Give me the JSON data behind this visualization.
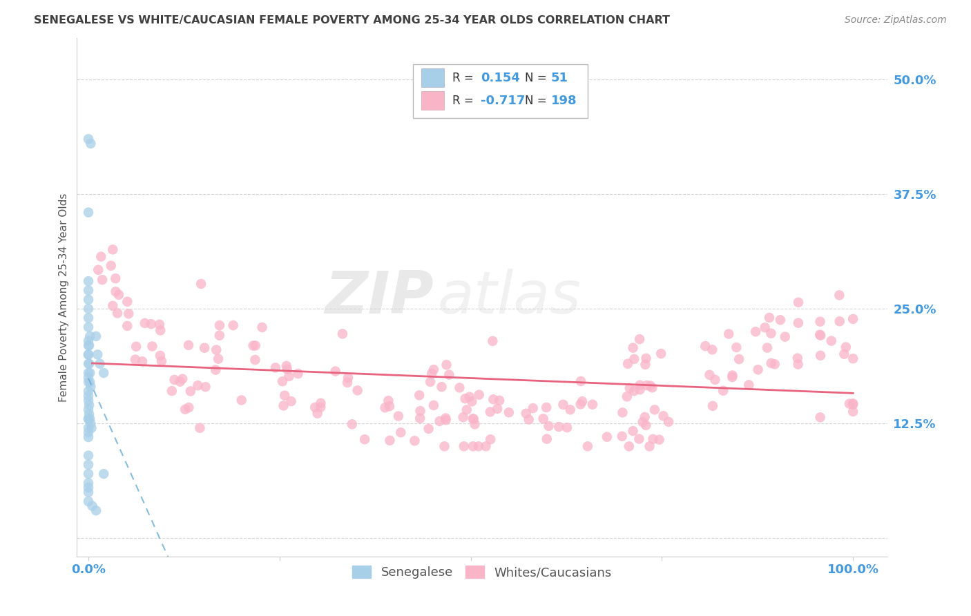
{
  "title": "SENEGALESE VS WHITE/CAUCASIAN FEMALE POVERTY AMONG 25-34 YEAR OLDS CORRELATION CHART",
  "source": "Source: ZipAtlas.com",
  "ylabel": "Female Poverty Among 25-34 Year Olds",
  "senegalese_color": "#a8cfe8",
  "caucasian_color": "#f9b4c8",
  "trend_blue": "#6aabd2",
  "trend_pink": "#e8637e",
  "watermark_zip": "ZIP",
  "watermark_atlas": "atlas",
  "background_color": "#ffffff",
  "grid_color": "#d0d0d0",
  "title_color": "#404040",
  "axis_label_color": "#555555",
  "tick_color": "#4499dd",
  "legend_r1": "0.154",
  "legend_n1": "51",
  "legend_r2": "-0.717",
  "legend_n2": "198"
}
